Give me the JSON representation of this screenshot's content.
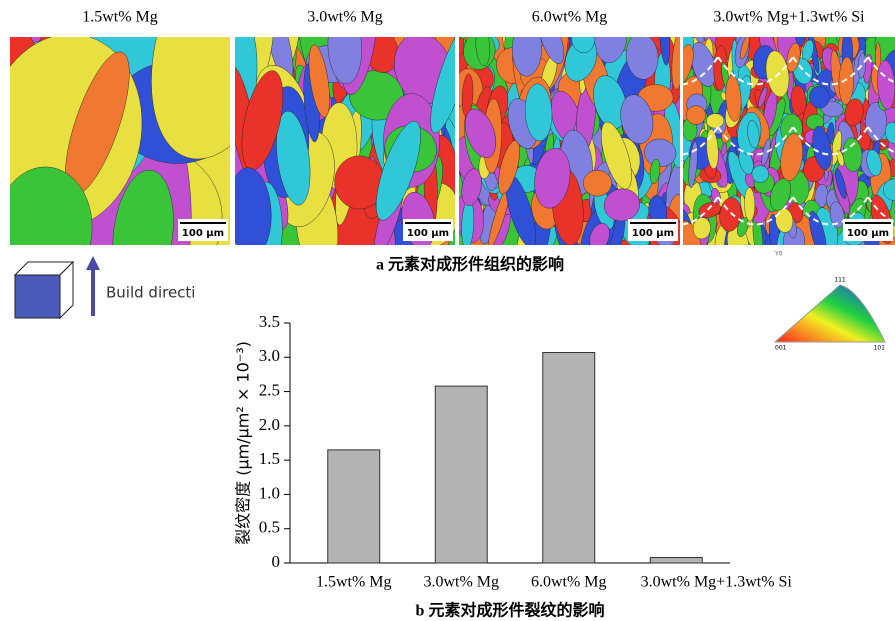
{
  "panel_a": {
    "caption": "a 元素对成形件组织的影响",
    "panels": [
      {
        "title": "1.5wt% Mg",
        "scale": "100 μm"
      },
      {
        "title": "3.0wt% Mg",
        "scale": "100 μm"
      },
      {
        "title": "6.0wt% Mg",
        "scale": "100 μm"
      },
      {
        "title": "3.0wt% Mg+1.3wt% Si",
        "scale": "100 μm"
      }
    ],
    "build_direction": "Build directi",
    "ipf_key": {
      "corner_top": "111",
      "corner_left": "001",
      "corner_right": "101",
      "label": "Y0"
    }
  },
  "chart_data": {
    "type": "bar",
    "caption": "b 元素对成形件裂纹的影响",
    "y_label": "裂纹密度 (μm/μm² × 10⁻³)",
    "categories": [
      "1.5wt% Mg",
      "3.0wt% Mg",
      "6.0wt% Mg",
      "3.0wt% Mg+1.3wt% Si"
    ],
    "values": [
      1.65,
      2.58,
      3.07,
      0.08
    ],
    "color": "#b3b3b3",
    "ylim": [
      0,
      3.5
    ],
    "yticks": [
      0,
      0.5,
      {
        "value": 1,
        "label": "1.0"
      },
      1.5,
      {
        "value": 2,
        "label": "2.0"
      },
      2.5,
      {
        "value": 3,
        "label": "3.0"
      },
      3.5
    ]
  }
}
